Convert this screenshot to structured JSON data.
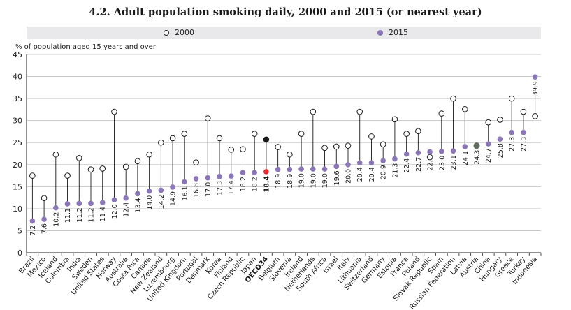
{
  "chart_data": {
    "type": "scatter",
    "title": "4.2. Adult population smoking daily, 2000 and 2015 (or nearest year)",
    "ylabel": "% of population aged 15 years and over",
    "xlabel": "",
    "ylim": [
      0,
      45
    ],
    "yticks": [
      0,
      5,
      10,
      15,
      20,
      25,
      30,
      35,
      40,
      45
    ],
    "grid": true,
    "legend": "top",
    "colors": {
      "s2015": "#8b77b7",
      "highlight": "#e8232a",
      "oecd2000": "#1a1a1a",
      "austria": "#5f6b5c",
      "grid": "#bfbfbf"
    },
    "series": [
      {
        "name": "2000",
        "marker": "hollow-circle"
      },
      {
        "name": "2015",
        "marker": "filled-circle"
      }
    ],
    "categories": [
      "Brazil",
      "Mexico",
      "Iceland",
      "Colombia",
      "India",
      "Sweden",
      "United States",
      "Norway",
      "Australia",
      "Costa Rica",
      "Canada",
      "New Zealand",
      "Luxembourg",
      "United Kingdom",
      "Portugal",
      "Denmark",
      "Korea",
      "Finland",
      "Czech Republic",
      "Japan",
      "OECD34",
      "Belgium",
      "Slovenia",
      "Ireland",
      "Netherlands",
      "South Africa",
      "Israel",
      "Italy",
      "Lithuania",
      "Switzerland",
      "Germany",
      "Estonia",
      "France",
      "Poland",
      "Slovak Republic",
      "Spain",
      "Russian Federation",
      "Latvia",
      "Austria",
      "China",
      "Hungary",
      "Greece",
      "Turkey",
      "Indonesia"
    ],
    "values_2015": [
      7.2,
      7.6,
      10.2,
      11.1,
      11.2,
      11.2,
      11.4,
      12.0,
      12.4,
      13.4,
      14.0,
      14.2,
      14.9,
      16.1,
      16.8,
      17.0,
      17.3,
      17.4,
      18.2,
      18.2,
      18.4,
      18.9,
      18.9,
      19.0,
      19.0,
      19.0,
      19.6,
      20.0,
      20.4,
      20.4,
      20.9,
      21.3,
      22.4,
      22.7,
      22.9,
      23.0,
      23.1,
      24.1,
      24.3,
      24.7,
      25.8,
      27.3,
      27.3,
      39.9
    ],
    "labels_2015": [
      "7.2",
      "7.6",
      "10.2",
      "11.1",
      "11.2",
      "11.2",
      "11.4",
      "12.0",
      "12.4",
      "13.4",
      "14.0",
      "14.2",
      "14.9",
      "16.1",
      "16.8",
      "17.0",
      "17.3",
      "17.4",
      "18.2",
      "18.2",
      "18.4",
      "18.9",
      "18.9",
      "19.0",
      "19.0",
      "19.0",
      "19.6",
      "20.0",
      "20.4",
      "20.4",
      "20.9",
      "21.3",
      "22.4",
      "22.7",
      "22.9",
      "23.0",
      "23.1",
      "24.1",
      "24.3",
      "24.7",
      "25.8",
      "27.3",
      "27.3",
      "39.9"
    ],
    "values_2000": [
      17.5,
      12.4,
      22.3,
      17.5,
      21.5,
      18.9,
      19.1,
      32.0,
      19.5,
      20.8,
      22.3,
      25.0,
      26.0,
      27.0,
      20.5,
      30.5,
      26.0,
      23.4,
      23.5,
      27.0,
      25.7,
      24.0,
      22.3,
      27.0,
      32.0,
      23.8,
      24.1,
      24.3,
      32.0,
      26.4,
      24.6,
      30.3,
      27.0,
      27.6,
      21.7,
      31.6,
      35.0,
      32.6,
      null,
      29.6,
      30.2,
      35.0,
      32.0,
      31.0
    ],
    "highlight_index": 20
  }
}
